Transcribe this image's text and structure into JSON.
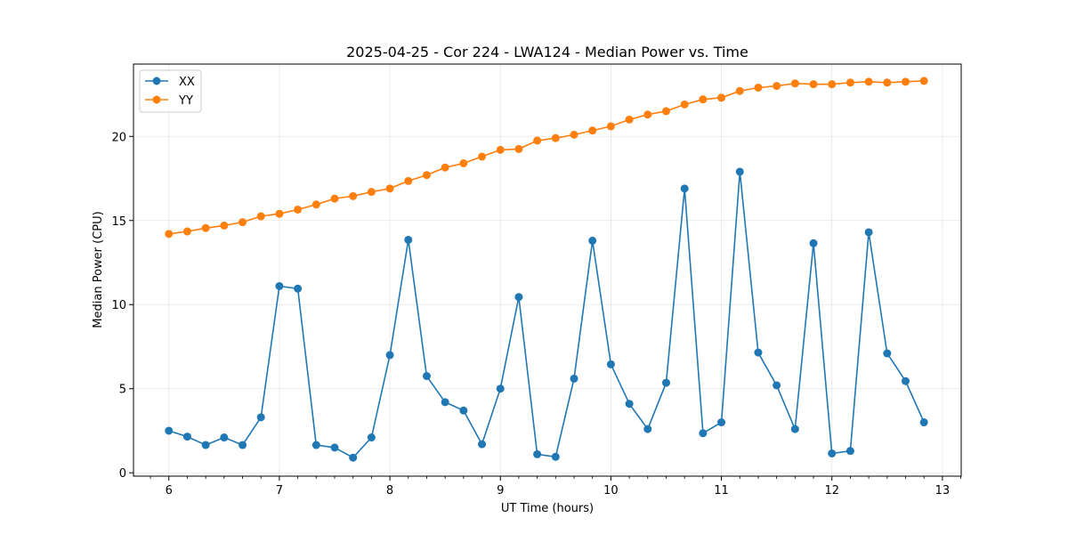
{
  "chart_data": {
    "type": "line",
    "title": "2025-04-25 - Cor 224 - LWA124 - Median Power vs. Time",
    "xlabel": "UT Time (hours)",
    "ylabel": "Median Power (CPU)",
    "xlim": [
      5.68,
      13.17
    ],
    "ylim": [
      -0.2,
      24.3
    ],
    "xticks": [
      6,
      7,
      8,
      9,
      10,
      11,
      12,
      13
    ],
    "xtick_labels": [
      "6",
      "7",
      "8",
      "9",
      "10",
      "11",
      "12",
      "13"
    ],
    "yticks": [
      0,
      5,
      10,
      15,
      20
    ],
    "ytick_labels": [
      "0",
      "5",
      "10",
      "15",
      "20"
    ],
    "grid": true,
    "legend_position": "top-left",
    "series": [
      {
        "name": "XX",
        "color": "#1f77b4",
        "x": [
          6.0,
          6.1667,
          6.3333,
          6.5,
          6.6667,
          6.8333,
          7.0,
          7.1667,
          7.3333,
          7.5,
          7.6667,
          7.8333,
          8.0,
          8.1667,
          8.3333,
          8.5,
          8.6667,
          8.8333,
          9.0,
          9.1667,
          9.3333,
          9.5,
          9.6667,
          9.8333,
          10.0,
          10.1667,
          10.3333,
          10.5,
          10.6667,
          10.8333,
          11.0,
          11.1667,
          11.3333,
          11.5,
          11.6667,
          11.8333,
          12.0,
          12.1667,
          12.3333,
          12.5,
          12.6667,
          12.8333
        ],
        "values": [
          2.5,
          2.15,
          1.65,
          2.1,
          1.65,
          3.3,
          11.1,
          10.95,
          1.65,
          1.5,
          0.9,
          2.1,
          7.0,
          13.85,
          5.75,
          4.2,
          3.7,
          1.7,
          5.0,
          10.45,
          1.1,
          0.95,
          5.6,
          13.8,
          6.45,
          4.1,
          2.6,
          5.35,
          16.9,
          2.35,
          3.0,
          17.9,
          7.15,
          5.2,
          2.6,
          13.65,
          1.15,
          1.3,
          14.3,
          7.1,
          5.45,
          3.0
        ]
      },
      {
        "name": "YY",
        "color": "#ff7f0e",
        "x": [
          6.0,
          6.1667,
          6.3333,
          6.5,
          6.6667,
          6.8333,
          7.0,
          7.1667,
          7.3333,
          7.5,
          7.6667,
          7.8333,
          8.0,
          8.1667,
          8.3333,
          8.5,
          8.6667,
          8.8333,
          9.0,
          9.1667,
          9.3333,
          9.5,
          9.6667,
          9.8333,
          10.0,
          10.1667,
          10.3333,
          10.5,
          10.6667,
          10.8333,
          11.0,
          11.1667,
          11.3333,
          11.5,
          11.6667,
          11.8333,
          12.0,
          12.1667,
          12.3333,
          12.5,
          12.6667,
          12.8333
        ],
        "values": [
          14.2,
          14.35,
          14.55,
          14.7,
          14.9,
          15.25,
          15.4,
          15.65,
          15.95,
          16.3,
          16.45,
          16.7,
          16.9,
          17.35,
          17.7,
          18.15,
          18.4,
          18.8,
          19.2,
          19.25,
          19.75,
          19.9,
          20.1,
          20.35,
          20.6,
          21.0,
          21.3,
          21.5,
          21.9,
          22.2,
          22.3,
          22.7,
          22.9,
          23.0,
          23.15,
          23.1,
          23.1,
          23.2,
          23.25,
          23.2,
          23.25,
          23.3
        ]
      }
    ]
  }
}
